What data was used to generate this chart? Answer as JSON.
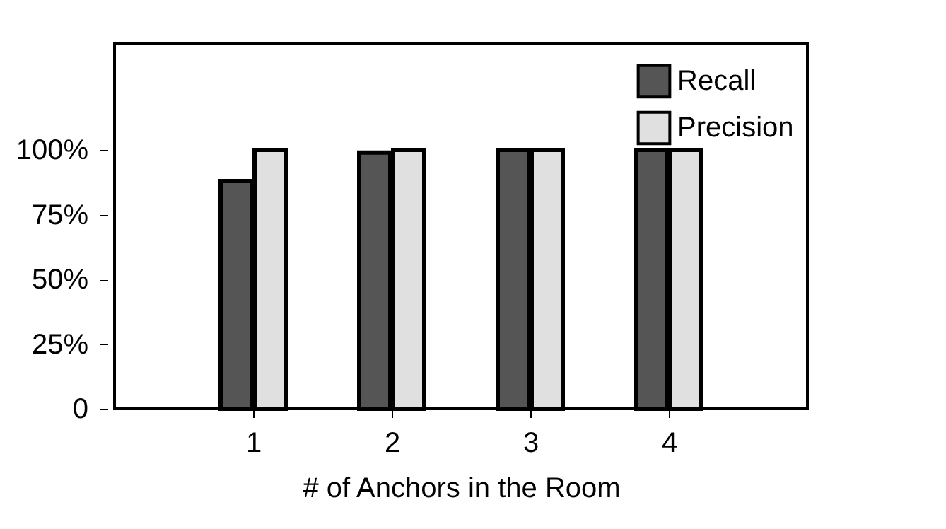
{
  "chart_data": {
    "type": "bar",
    "xlabel": "# of Anchors in the Room",
    "x": [
      1,
      2,
      3,
      4
    ],
    "series": [
      {
        "name": "Recall",
        "color": "#555555",
        "values": [
          88,
          99,
          100,
          100
        ]
      },
      {
        "name": "Precision",
        "color": "#e0e0e0",
        "values": [
          100,
          100,
          100,
          100
        ]
      }
    ],
    "xlim": [
      0,
      5
    ],
    "xticks": [
      1,
      2,
      3,
      4
    ],
    "ylim": [
      0,
      141
    ],
    "yticks": [
      {
        "value": 0,
        "label": "0"
      },
      {
        "value": 25,
        "label": "25%"
      },
      {
        "value": 50,
        "label": "50%"
      },
      {
        "value": 75,
        "label": "75%"
      },
      {
        "value": 100,
        "label": "100%"
      }
    ],
    "grid": false,
    "legend": "top right"
  }
}
